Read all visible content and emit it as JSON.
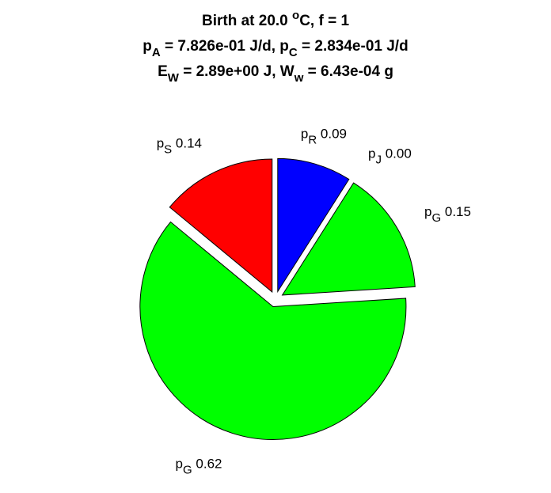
{
  "chart_data": {
    "type": "pie",
    "title_lines": [
      [
        {
          "text": "Birth at 20.0 "
        },
        {
          "text": "o",
          "sup": true
        },
        {
          "text": "C, f = 1"
        }
      ],
      [
        {
          "text": "p"
        },
        {
          "text": "A",
          "sub": true
        },
        {
          "text": " = 7.826e-01 J/d, p"
        },
        {
          "text": "C",
          "sub": true
        },
        {
          "text": " = 2.834e-01 J/d"
        }
      ],
      [
        {
          "text": "E"
        },
        {
          "text": "W",
          "sub": true
        },
        {
          "text": " = 2.89e+00 J, W"
        },
        {
          "text": "w",
          "sub": true
        },
        {
          "text": " = 6.43e-04 g"
        }
      ]
    ],
    "categories": [
      {
        "symbol": "p",
        "subscript": "R"
      },
      {
        "symbol": "p",
        "subscript": "J"
      },
      {
        "symbol": "p",
        "subscript": "G"
      },
      {
        "symbol": "p",
        "subscript": "G"
      },
      {
        "symbol": "p",
        "subscript": "S"
      }
    ],
    "values": [
      0.09,
      0,
      0.15,
      0.62,
      0.14
    ],
    "value_labels": [
      "0.09",
      "0.00",
      "0.15",
      "0.62",
      "0.14"
    ],
    "colors": [
      "#0000ff",
      "#00ffff",
      "#00ff00",
      "#00ff00",
      "#ff0000"
    ],
    "exploded": true
  }
}
